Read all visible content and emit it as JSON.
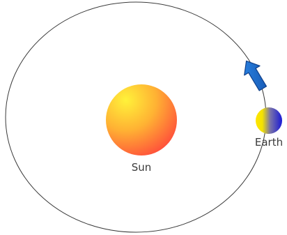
{
  "labels": {
    "sun": "Sun",
    "earth": "Earth"
  },
  "colors": {
    "orbit": "#3a3a3a",
    "sun_inner": "#ffe83a",
    "sun_outer": "#ff4a3a",
    "earth_day": "#ffe400",
    "earth_night": "#1a1ad6",
    "arrow_fill": "#1f6fd0",
    "arrow_stroke": "#0f3f8a"
  },
  "icons": {
    "motion_arrow": "arrow-icon"
  }
}
